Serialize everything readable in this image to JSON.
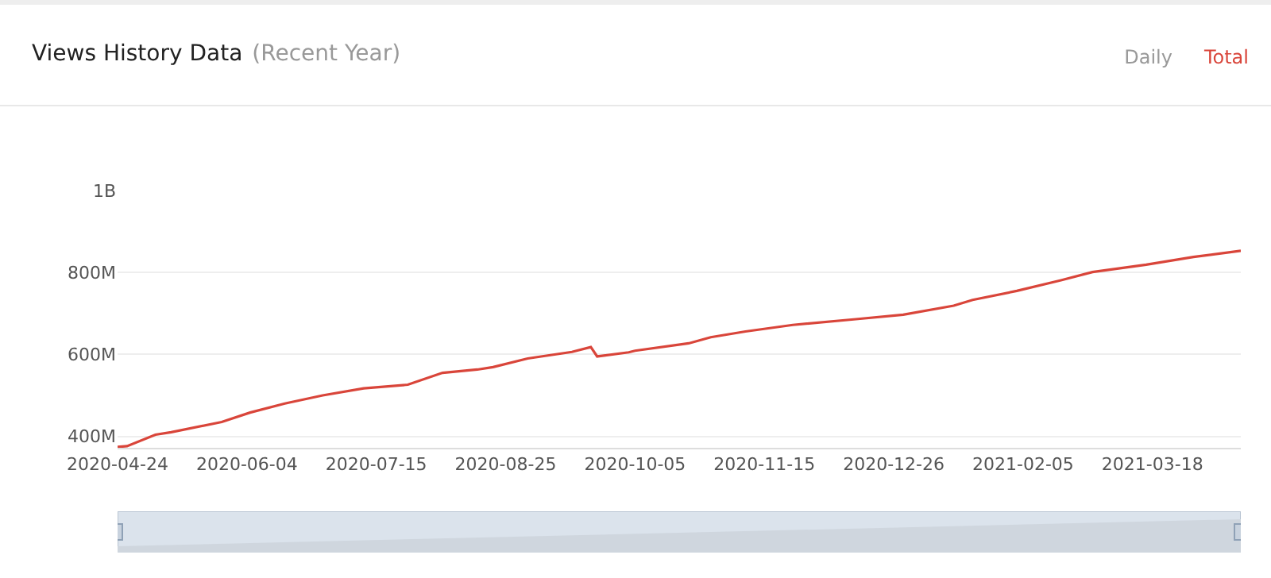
{
  "chart_data": {
    "type": "line",
    "title": "Views History Data",
    "subtitle": "(Recent Year)",
    "annotations": [
      "Daily",
      "Total"
    ],
    "x": [
      "2020-04-24",
      "2020-04-27",
      "2020-05-06",
      "2020-05-11",
      "2020-05-27",
      "2020-06-05",
      "2020-06-16",
      "2020-06-28",
      "2020-07-11",
      "2020-07-25",
      "2020-08-05",
      "2020-08-16",
      "2020-08-21",
      "2020-09-01",
      "2020-09-15",
      "2020-09-21",
      "2020-09-23",
      "2020-10-03",
      "2020-10-05",
      "2020-10-22",
      "2020-10-29",
      "2020-11-09",
      "2020-11-24",
      "2020-12-14",
      "2020-12-29",
      "2021-01-14",
      "2021-01-20",
      "2021-02-03",
      "2021-02-17",
      "2021-02-27",
      "2021-03-16",
      "2021-03-31",
      "2021-04-15"
    ],
    "series": [
      {
        "color": "#d9453a",
        "values": [
          374000000,
          376000000,
          404000000,
          410000000,
          435000000,
          458000000,
          480000000,
          500000000,
          517000000,
          526000000,
          555000000,
          563000000,
          569000000,
          590000000,
          606000000,
          618000000,
          595000000,
          605000000,
          609000000,
          627000000,
          642000000,
          656000000,
          672000000,
          686000000,
          697000000,
          719000000,
          733000000,
          755000000,
          781000000,
          801000000,
          819000000,
          838000000,
          853000000
        ]
      }
    ],
    "xlim": [
      "2020-04-24",
      "2021-04-15"
    ],
    "xticks": [
      "2020-04-24",
      "2020-06-04",
      "2020-07-15",
      "2020-08-25",
      "2020-10-05",
      "2020-11-15",
      "2020-12-26",
      "2021-02-05",
      "2021-03-18"
    ],
    "ylim": [
      372000000,
      1000000000
    ],
    "yticks": [
      {
        "value": 400000000,
        "label": "400M"
      },
      {
        "value": 600000000,
        "label": "600M"
      },
      {
        "value": 800000000,
        "label": "800M"
      },
      {
        "value": 1000000000,
        "label": "1B"
      }
    ],
    "grid": "y",
    "marker": "none",
    "line_style": "solid"
  }
}
